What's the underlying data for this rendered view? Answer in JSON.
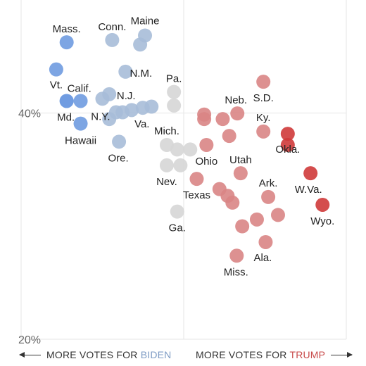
{
  "chart_data": {
    "type": "scatter",
    "title": "",
    "xlabel": "",
    "ylabel": "",
    "xlim": [
      0,
      10
    ],
    "ylim": [
      20,
      50
    ],
    "y_ticks": [
      {
        "value": 40,
        "label": "40%"
      },
      {
        "value": 20,
        "label": "20%"
      }
    ],
    "grid": true,
    "colors": {
      "strong_blue": "#6f9be0",
      "light_blue": "#a7bcd8",
      "gray": "#d6d6d6",
      "light_red": "#d98585",
      "strong_red": "#cf3a3a"
    },
    "points": [
      {
        "x": 1.4,
        "y": 46.26,
        "label": "Mass.",
        "color": "strong_blue"
      },
      {
        "x": 1.08,
        "y": 43.86,
        "label": "Vt.",
        "color": "strong_blue"
      },
      {
        "x": 1.4,
        "y": 41.07,
        "label": "Calif.",
        "color": "strong_blue"
      },
      {
        "x": 1.83,
        "y": 41.07,
        "color": "strong_blue"
      },
      {
        "x": 1.4,
        "y": 41.07,
        "label": "Md.",
        "color": "strong_blue"
      },
      {
        "x": 1.83,
        "y": 39.07,
        "label": "Hawaii",
        "color": "strong_blue"
      },
      {
        "x": 2.8,
        "y": 46.46,
        "label": "Conn.",
        "color": "light_blue"
      },
      {
        "x": 3.81,
        "y": 46.86,
        "label": "Maine",
        "color": "light_blue"
      },
      {
        "x": 3.66,
        "y": 46.06,
        "color": "light_blue"
      },
      {
        "x": 3.21,
        "y": 43.66,
        "label": "N.M.",
        "color": "light_blue"
      },
      {
        "x": 2.71,
        "y": 41.67,
        "label": "N.J.",
        "color": "light_blue"
      },
      {
        "x": 2.5,
        "y": 41.27,
        "color": "light_blue"
      },
      {
        "x": 2.92,
        "y": 40.07,
        "label": "N.Y.",
        "color": "light_blue"
      },
      {
        "x": 3.12,
        "y": 40.07,
        "color": "light_blue"
      },
      {
        "x": 3.4,
        "y": 40.27,
        "color": "light_blue"
      },
      {
        "x": 3.74,
        "y": 40.47,
        "label": "Va.",
        "color": "light_blue"
      },
      {
        "x": 4.01,
        "y": 40.57,
        "color": "light_blue"
      },
      {
        "x": 2.71,
        "y": 39.47,
        "color": "light_blue"
      },
      {
        "x": 3.01,
        "y": 37.47,
        "label": "Ore.",
        "color": "light_blue"
      },
      {
        "x": 4.7,
        "y": 41.87,
        "label": "Pa.",
        "color": "gray"
      },
      {
        "x": 4.7,
        "y": 40.67,
        "color": "gray"
      },
      {
        "x": 4.48,
        "y": 37.18,
        "label": "Mich.",
        "color": "gray"
      },
      {
        "x": 4.8,
        "y": 36.78,
        "color": "gray"
      },
      {
        "x": 5.2,
        "y": 36.78,
        "color": "gray"
      },
      {
        "x": 4.48,
        "y": 35.38,
        "label": "Nev.",
        "color": "gray"
      },
      {
        "x": 4.9,
        "y": 35.38,
        "color": "gray"
      },
      {
        "x": 4.8,
        "y": 31.29,
        "label": "Ga.",
        "color": "gray"
      },
      {
        "x": 5.63,
        "y": 39.47,
        "color": "light_red"
      },
      {
        "x": 5.63,
        "y": 39.87,
        "color": "light_red"
      },
      {
        "x": 6.2,
        "y": 39.47,
        "color": "light_red"
      },
      {
        "x": 6.65,
        "y": 39.97,
        "label": "Neb.",
        "color": "light_red"
      },
      {
        "x": 7.45,
        "y": 42.77,
        "label": "S.D.",
        "color": "light_red"
      },
      {
        "x": 7.45,
        "y": 38.37,
        "label": "Ky.",
        "color": "light_red"
      },
      {
        "x": 5.7,
        "y": 37.18,
        "label": "Ohio",
        "color": "light_red"
      },
      {
        "x": 6.4,
        "y": 37.98,
        "color": "light_red"
      },
      {
        "x": 6.1,
        "y": 33.28,
        "color": "light_red"
      },
      {
        "x": 6.75,
        "y": 34.68,
        "label": "Utah",
        "color": "light_red"
      },
      {
        "x": 5.4,
        "y": 34.18,
        "label": "Texas",
        "color": "light_red"
      },
      {
        "x": 6.35,
        "y": 32.68,
        "color": "light_red"
      },
      {
        "x": 6.5,
        "y": 32.08,
        "color": "light_red"
      },
      {
        "x": 6.8,
        "y": 29.99,
        "color": "light_red"
      },
      {
        "x": 7.25,
        "y": 30.59,
        "color": "light_red"
      },
      {
        "x": 7.6,
        "y": 32.58,
        "label": "Ark.",
        "color": "light_red"
      },
      {
        "x": 7.9,
        "y": 30.99,
        "color": "light_red"
      },
      {
        "x": 7.52,
        "y": 28.59,
        "label": "Ala.",
        "color": "light_red"
      },
      {
        "x": 6.63,
        "y": 27.39,
        "label": "Miss.",
        "color": "light_red"
      },
      {
        "x": 8.2,
        "y": 38.17,
        "label": "Okla.",
        "color": "strong_red"
      },
      {
        "x": 8.2,
        "y": 37.18,
        "color": "strong_red"
      },
      {
        "x": 8.9,
        "y": 34.68,
        "label": "W.Va.",
        "color": "strong_red"
      },
      {
        "x": 9.27,
        "y": 31.89,
        "label": "Wyo.",
        "color": "strong_red"
      }
    ]
  },
  "footer": {
    "left_prefix": "MORE VOTES FOR ",
    "left_name": "BIDEN",
    "right_prefix": "MORE VOTES FOR ",
    "right_name": "TRUMP"
  }
}
